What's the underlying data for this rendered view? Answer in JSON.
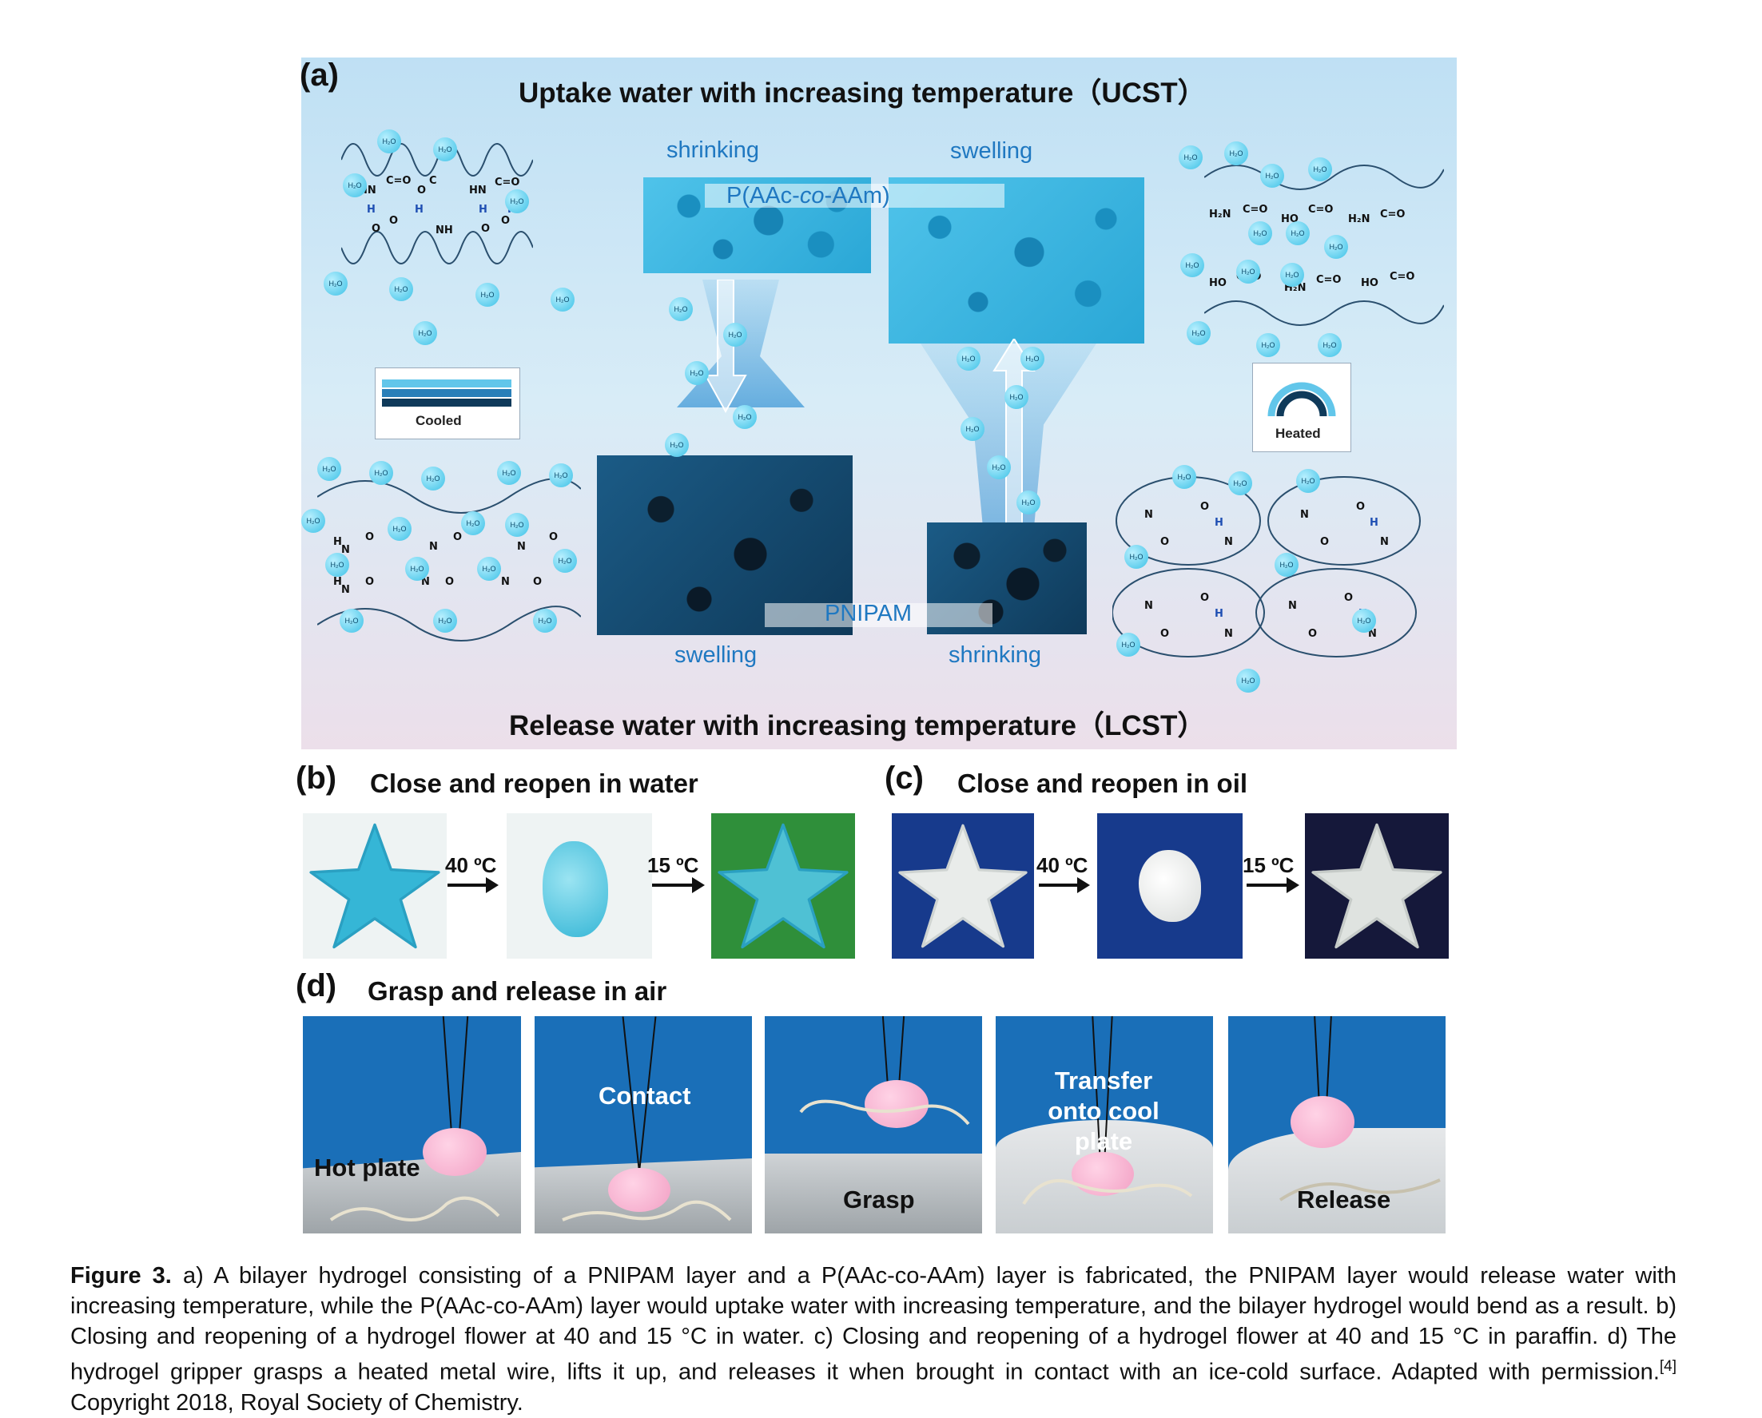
{
  "panel_a": {
    "letter": "(a)",
    "title_top": "Uptake water with increasing temperature（UCST）",
    "title_bottom": "Release water with increasing temperature（LCST）",
    "label_shrinking_top": "shrinking",
    "label_swelling_top": "swelling",
    "label_swelling_bottom": "swelling",
    "label_shrinking_bottom": "shrinking",
    "material_top_prefix": "P(AAc-",
    "material_top_italic": "co",
    "material_top_suffix": "-AAm)",
    "material_bottom": "PNIPAM",
    "legend_cooled": "Cooled",
    "legend_heated": "Heated",
    "h2o_label": "H₂O"
  },
  "panel_b": {
    "letter": "(b)",
    "title": "Close and reopen in water",
    "arrow1": "40 ºC",
    "arrow2": "15 ºC"
  },
  "panel_c": {
    "letter": "(c)",
    "title": "Close and reopen in oil",
    "arrow1": "40 ºC",
    "arrow2": "15 ºC"
  },
  "panel_d": {
    "letter": "(d)",
    "title": "Grasp and release in air",
    "photos": [
      {
        "label": "Hot plate"
      },
      {
        "label": "Contact"
      },
      {
        "label": "Grasp"
      },
      {
        "label": "Transfer onto cool plate"
      },
      {
        "label": "Release"
      }
    ]
  },
  "caption": {
    "figure_label": "Figure 3.",
    "text": " a) A bilayer hydrogel consisting of a PNIPAM layer and a P(AAc-co-AAm) layer is fabricated, the PNIPAM layer would release water with increasing temperature, while the P(AAc-co-AAm) layer would uptake water with increasing temperature, and the bilayer hydrogel would bend as a result. b) Closing and reopening of a hydrogel flower at 40 and 15 °C in water. c) Closing and reopening of a hydrogel flower at 40 and 15 °C in paraffin. d) The hydrogel gripper grasps a heated metal wire, lifts it up, and releases it when brought in contact with an ice-cold surface. Adapted with permission.",
    "ref": "[4]",
    "copyright": " Copyright 2018, Royal Society of Chemistry."
  },
  "colors": {
    "label_blue": "#1f78c1",
    "sponge_light": "#2aa7d6",
    "sponge_dark": "#0f3a5a",
    "photo_blue": "#1a6fb8",
    "hydrogel_cyan": "#35b6d6",
    "hydrogel_pink": "#f4a8c9"
  }
}
